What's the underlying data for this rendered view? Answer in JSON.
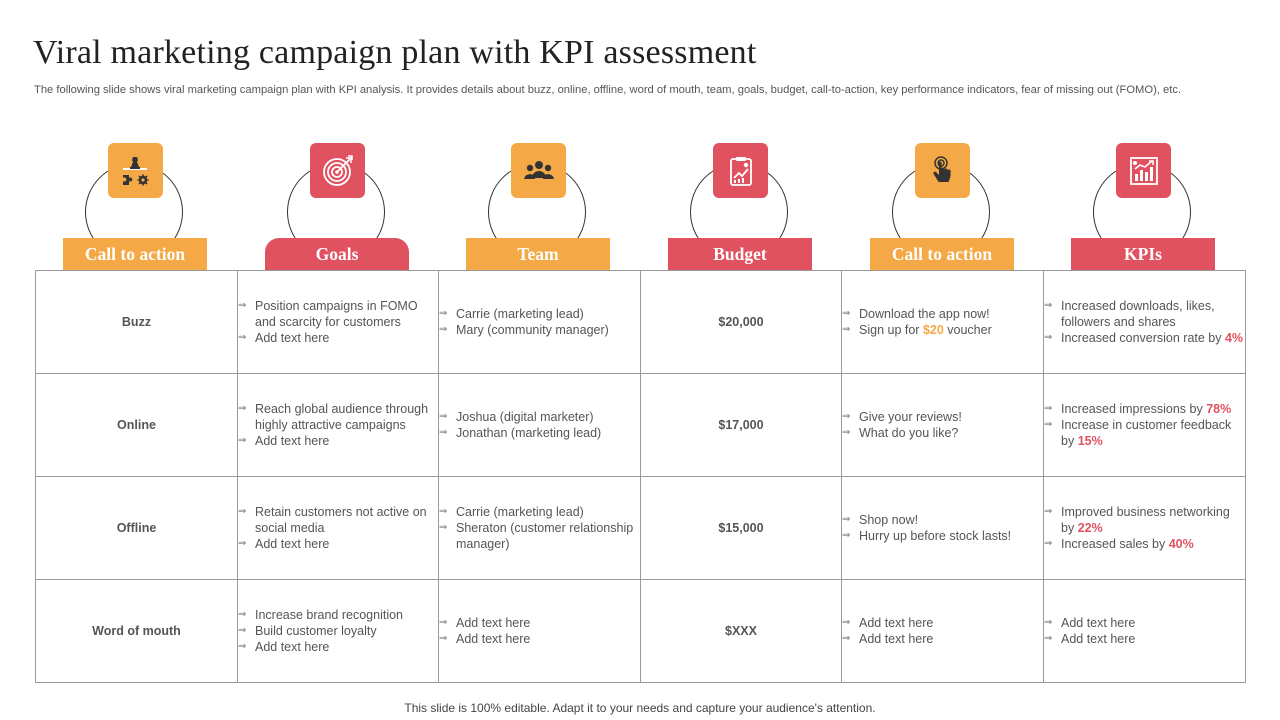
{
  "title": "Viral marketing campaign plan with KPI assessment",
  "subtitle": "The following slide shows viral marketing campaign plan with KPI analysis. It provides details about buzz, online, offline, word of mouth, team, goals, budget, call-to-action, key performance indicators, fear of missing out (FOMO), etc.",
  "colors": {
    "orange": "#f5a946",
    "red": "#e05260"
  },
  "columns": [
    {
      "label": "Call to action",
      "color": "#f5a946",
      "icon": "strategy-icon"
    },
    {
      "label": "Goals",
      "color": "#e05260",
      "icon": "target-icon"
    },
    {
      "label": "Team",
      "color": "#f5a946",
      "icon": "team-icon"
    },
    {
      "label": "Budget",
      "color": "#e05260",
      "icon": "budget-report-icon"
    },
    {
      "label": "Call to action",
      "color": "#f5a946",
      "icon": "tap-icon"
    },
    {
      "label": "KPIs",
      "color": "#e05260",
      "icon": "kpi-chart-icon"
    }
  ],
  "rows": [
    {
      "name": "Buzz",
      "goals": [
        "Position campaigns in FOMO and scarcity for customers",
        "Add text here"
      ],
      "team": [
        "Carrie  (marketing lead)",
        "Mary (community manager)"
      ],
      "budget": "$20,000",
      "cta": [
        [
          "Download  the app now!"
        ],
        [
          "Sign up for ",
          {
            "hl": "$20",
            "c": "orange"
          },
          " voucher"
        ]
      ],
      "kpis": [
        [
          "Increased downloads, likes, followers and shares"
        ],
        [
          "Increased  conversion  rate by ",
          {
            "hl": "4%",
            "c": "red"
          }
        ]
      ]
    },
    {
      "name": "Online",
      "goals": [
        "Reach global audience through highly attractive campaigns",
        "Add text here"
      ],
      "team": [
        "Joshua (digital marketer)",
        "Jonathan  (marketing lead)"
      ],
      "budget": "$17,000",
      "cta": [
        [
          "Give  your reviews!"
        ],
        [
          "What do you like?"
        ]
      ],
      "kpis": [
        [
          "Increased impressions by ",
          {
            "hl": "78%",
            "c": "red"
          }
        ],
        [
          "Increase  in customer feedback by ",
          {
            "hl": "15%",
            "c": "red"
          }
        ]
      ]
    },
    {
      "name": "Offline",
      "goals": [
        "Retain customers not active on social media",
        "Add text here"
      ],
      "team": [
        "Carrie  (marketing lead)",
        "Sheraton  (customer relationship manager)"
      ],
      "budget": "$15,000",
      "cta": [
        [
          "Shop now!"
        ],
        [
          "Hurry up before stock lasts!"
        ]
      ],
      "kpis": [
        [
          "Improved  business networking by ",
          {
            "hl": "22%",
            "c": "red"
          }
        ],
        [
          "Increased sales by ",
          {
            "hl": "40%",
            "c": "red"
          }
        ]
      ]
    },
    {
      "name": "Word of mouth",
      "goals": [
        "Increase brand recognition",
        "Build customer loyalty",
        "Add text here"
      ],
      "team": [
        "Add text here",
        "Add text here"
      ],
      "budget": "$XXX",
      "cta": [
        [
          "Add text here"
        ],
        [
          "Add text here"
        ]
      ],
      "kpis": [
        [
          "Add text here"
        ],
        [
          "Add text here"
        ]
      ]
    }
  ],
  "footer": "This slide is 100% editable. Adapt it to your needs and capture your audience's attention."
}
